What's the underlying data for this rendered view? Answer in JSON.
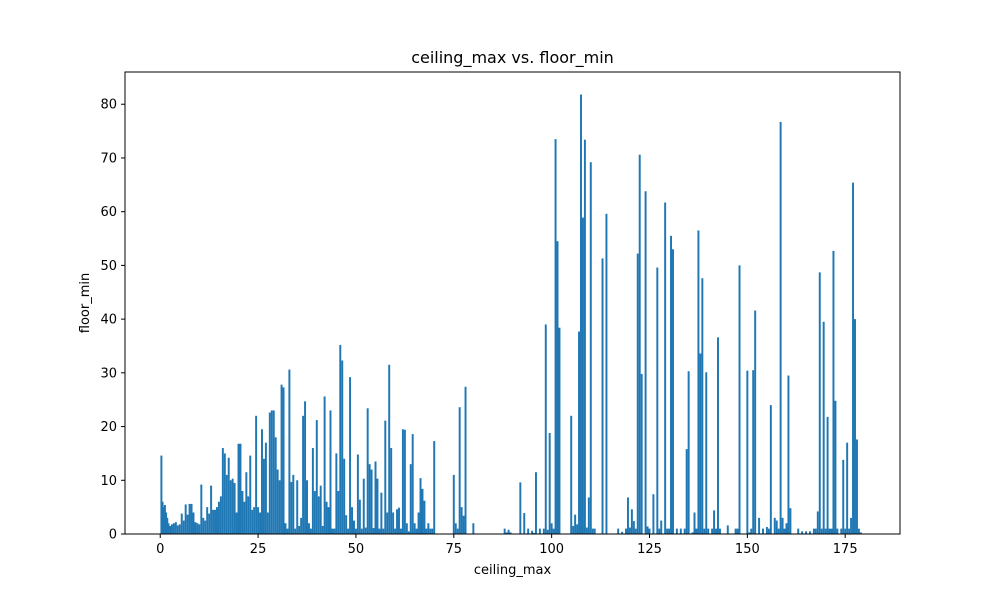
{
  "chart_data": {
    "type": "bar",
    "title": "ceiling_max vs. floor_min",
    "xlabel": "ceiling_max",
    "ylabel": "floor_min",
    "xlim": [
      -9,
      189
    ],
    "ylim": [
      0,
      86
    ],
    "x_ticks": [
      "0",
      "25",
      "50",
      "75",
      "100",
      "125",
      "150",
      "175"
    ],
    "y_ticks": [
      "0",
      "10",
      "20",
      "30",
      "40",
      "50",
      "60",
      "70",
      "80"
    ],
    "bar_color": "#1f77b4",
    "bar_width": 0.5,
    "grid": false,
    "x": [
      0.3,
      0.6,
      0.9,
      1.2,
      1.5,
      1.8,
      2.1,
      2.5,
      3,
      3.5,
      4,
      4.5,
      5,
      5.5,
      6,
      6.5,
      7,
      7.5,
      8,
      8.5,
      9,
      9.5,
      10,
      10.5,
      11,
      11.5,
      12,
      12.5,
      13,
      13.5,
      14,
      14.5,
      15,
      15.5,
      16,
      16.5,
      17,
      17.5,
      18,
      18.5,
      19,
      19.5,
      20,
      20.5,
      21,
      21.5,
      22,
      22.5,
      23,
      23.5,
      24,
      24.5,
      25,
      25.5,
      26,
      26.5,
      27,
      27.5,
      28,
      28.5,
      29,
      29.5,
      30,
      30.5,
      31,
      31.5,
      32,
      32.5,
      33,
      33.5,
      34,
      34.5,
      35,
      35.5,
      36,
      36.5,
      37,
      37.5,
      38,
      38.5,
      39,
      39.5,
      40,
      40.5,
      41,
      41.5,
      42,
      42.5,
      43,
      43.5,
      44,
      44.5,
      45,
      45.5,
      46,
      46.5,
      47,
      47.5,
      48,
      48.5,
      49,
      49.5,
      50,
      50.5,
      51,
      51.5,
      52,
      52.5,
      53,
      53.5,
      54,
      54.5,
      55,
      55.5,
      56,
      56.5,
      57,
      57.5,
      58,
      58.5,
      59,
      59.5,
      60,
      60.5,
      61,
      61.5,
      62,
      62.5,
      63,
      63.5,
      64,
      64.5,
      65,
      65.5,
      66,
      66.5,
      67,
      67.5,
      68,
      68.5,
      69,
      69.5,
      70,
      75,
      75.5,
      76,
      76.5,
      77,
      77.5,
      78,
      80,
      88,
      88.5,
      89,
      89.5,
      92,
      93,
      94,
      95,
      95.5,
      96,
      97,
      98,
      98.5,
      99,
      99.5,
      100,
      100.5,
      101,
      101.5,
      102,
      105,
      105.5,
      106,
      106.5,
      107,
      107.5,
      108,
      108.5,
      109,
      109.5,
      110,
      110.5,
      111,
      113,
      114,
      117,
      118,
      119,
      119.5,
      120,
      120.5,
      121,
      121.5,
      122,
      122.5,
      123,
      124,
      124.5,
      125,
      126,
      127,
      127.5,
      128,
      129,
      129.5,
      130,
      130.5,
      131,
      132,
      133,
      134,
      134.5,
      135,
      136,
      136.5,
      137,
      137.5,
      138,
      138.5,
      139,
      139.5,
      140,
      141,
      141.5,
      142,
      142.5,
      143,
      145,
      147,
      147.5,
      148,
      150,
      150.5,
      151,
      151.5,
      152,
      153,
      154,
      155,
      155.5,
      156,
      157,
      157.5,
      158,
      158.5,
      159,
      159.5,
      160,
      160.5,
      161,
      163,
      164,
      165,
      166,
      167,
      167.5,
      168,
      168.5,
      169,
      169.5,
      170,
      170.5,
      171,
      171.5,
      172,
      172.5,
      173,
      174,
      174.5,
      175,
      175.5,
      176,
      176.5,
      177,
      177.5,
      178,
      178.5,
      179
    ],
    "values": [
      14.6,
      6,
      5,
      5.4,
      4,
      3,
      2,
      1.5,
      1.8,
      2,
      2.2,
      1.6,
      1.8,
      3.8,
      2.5,
      5.5,
      3.6,
      5.6,
      5.6,
      4,
      2.2,
      2,
      1.8,
      9.2,
      3,
      2.5,
      5,
      3.8,
      9,
      4.5,
      4.5,
      5,
      6,
      7,
      16,
      15,
      11,
      14.2,
      10,
      10.3,
      9.5,
      4,
      16.8,
      16.8,
      8,
      6,
      11.5,
      7,
      14.6,
      4.5,
      5,
      22,
      5,
      4,
      19.5,
      14,
      17,
      4,
      22.6,
      23,
      23,
      18,
      12,
      10,
      27.8,
      27.3,
      2,
      1,
      30.6,
      9.7,
      11,
      1,
      10,
      1.5,
      3,
      22,
      24.7,
      10,
      2,
      1,
      16,
      8,
      21.2,
      7,
      9,
      1.5,
      25.6,
      6,
      5,
      23,
      1,
      1,
      15,
      8,
      35.2,
      32.3,
      14,
      3.5,
      1,
      29.2,
      5,
      2.5,
      1,
      14.8,
      6.4,
      1,
      10.3,
      1.2,
      23.4,
      13,
      12,
      1.1,
      13.5,
      10.3,
      1,
      7.7,
      1,
      21.1,
      4,
      31.5,
      16,
      4,
      1,
      4.6,
      4.9,
      1,
      19.5,
      19.4,
      2,
      0.5,
      13,
      18.6,
      2,
      1,
      4,
      10.4,
      8.4,
      6.2,
      1,
      2,
      1,
      1,
      17.3,
      11,
      2,
      1,
      23.6,
      5,
      3.4,
      27.4,
      2,
      1,
      0.3,
      0.8,
      0.3,
      9.6,
      3.9,
      1,
      0.6,
      0.2,
      11.5,
      1,
      1,
      39,
      0.8,
      18.8,
      2,
      1,
      73.5,
      54.5,
      38.4,
      22,
      1.5,
      3.6,
      1.8,
      37.7,
      81.8,
      58.9,
      73.4,
      1.2,
      6.8,
      69.2,
      1,
      1,
      51.3,
      59.6,
      1,
      0.4,
      1,
      6.8,
      1.2,
      4.6,
      2.4,
      1,
      52.2,
      70.6,
      29.8,
      63.8,
      1.4,
      1,
      7.4,
      49.6,
      1,
      2.5,
      61.7,
      1,
      1,
      55.5,
      53,
      1,
      1,
      1,
      15.8,
      30.3,
      0.3,
      4,
      1,
      56.5,
      33.6,
      47.6,
      1,
      30.1,
      1,
      1,
      4.4,
      1,
      36.6,
      1,
      1.6,
      1,
      1,
      50,
      30.4,
      0.3,
      1,
      30.5,
      41.6,
      3,
      1,
      1.3,
      1,
      24,
      3,
      2.5,
      1,
      76.7,
      3,
      1,
      2,
      29.5,
      4.8,
      1,
      0.5,
      0.5,
      0.5,
      1,
      1,
      4.2,
      48.7,
      1,
      39.5,
      1,
      21.8,
      1,
      1,
      52.7,
      24.8,
      1,
      1,
      13.8,
      1,
      17,
      1,
      3,
      65.4,
      40,
      17.6,
      1,
      0.3
    ]
  }
}
